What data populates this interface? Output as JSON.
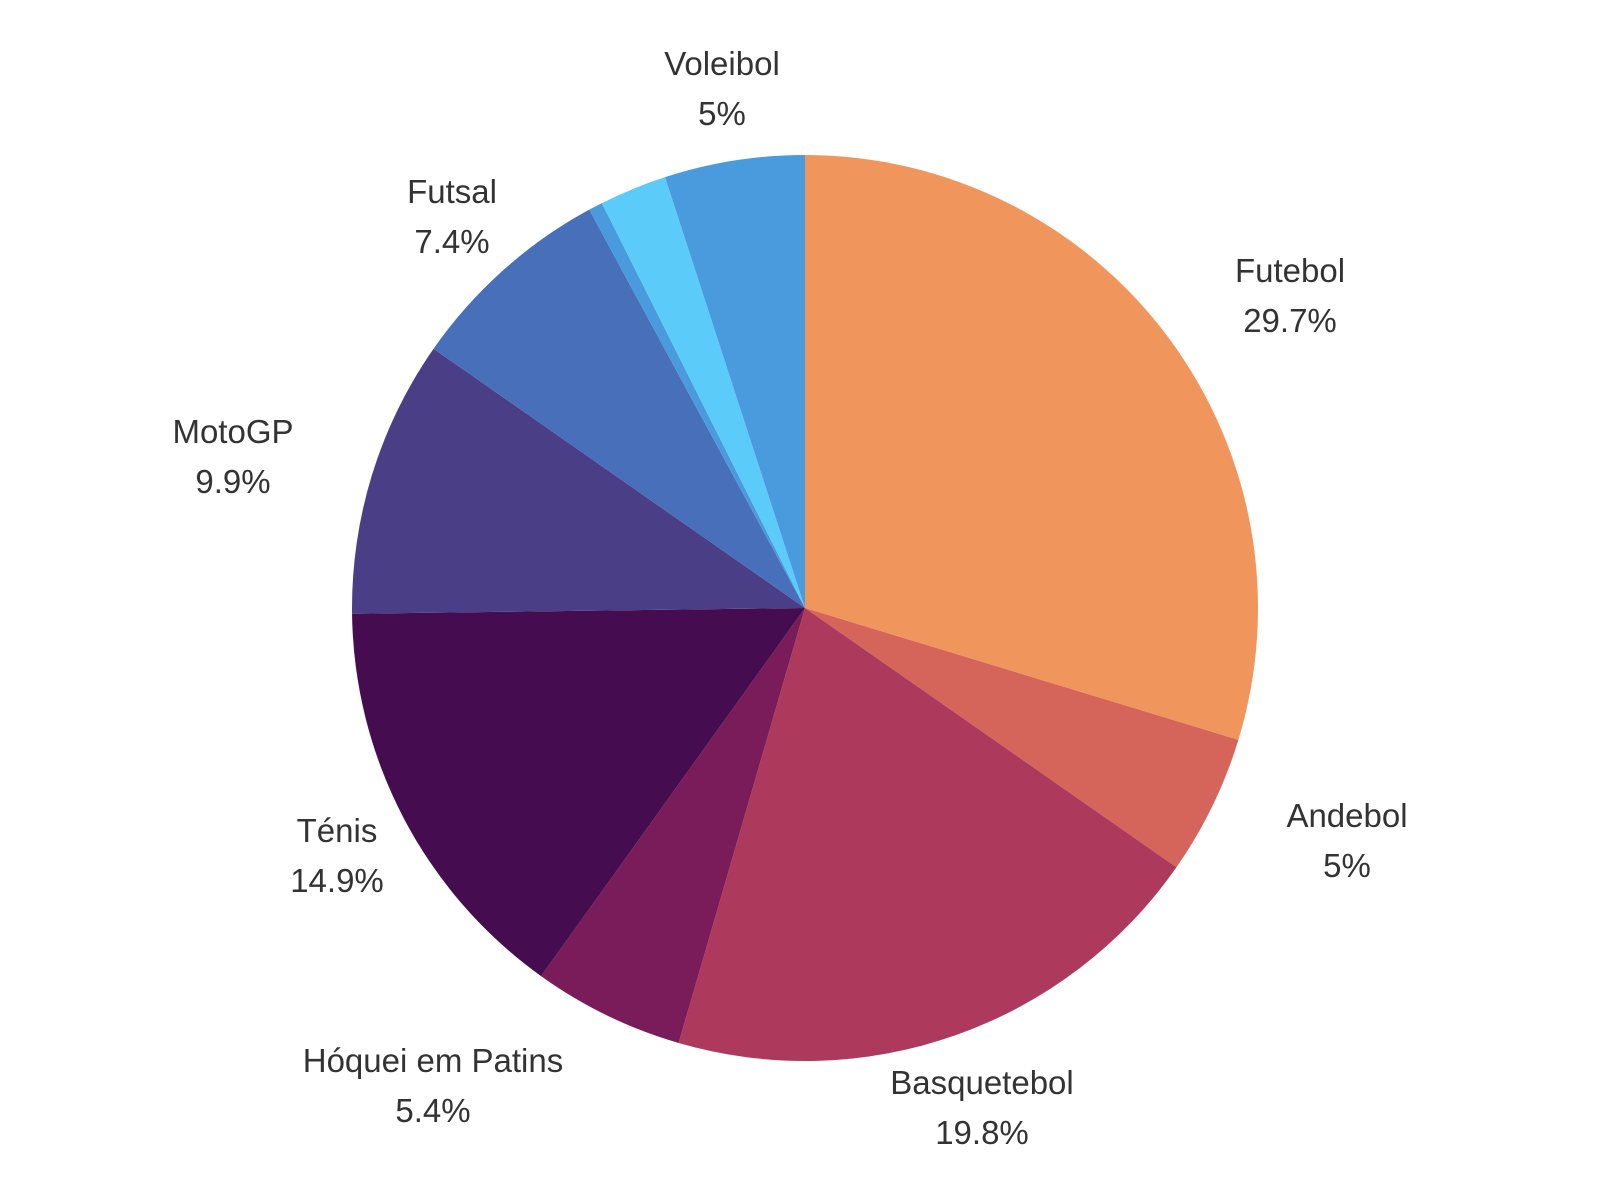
{
  "chart_data": {
    "type": "pie",
    "slices": [
      {
        "label": "Futebol",
        "value": 29.7,
        "display": "29.7%",
        "color": "#F0965C"
      },
      {
        "label": "Andebol",
        "value": 5.0,
        "display": "5%",
        "color": "#D5655A"
      },
      {
        "label": "Basquetebol",
        "value": 19.8,
        "display": "19.8%",
        "color": "#AD3A5D"
      },
      {
        "label": "Hóquei em Patins",
        "value": 5.4,
        "display": "5.4%",
        "color": "#7A1C59"
      },
      {
        "label": "Ténis",
        "value": 14.9,
        "display": "14.9%",
        "color": "#450D4F"
      },
      {
        "label": "MotoGP",
        "value": 9.9,
        "display": "9.9%",
        "color": "#4A3F87"
      },
      {
        "label": "Futsal",
        "value": 7.4,
        "display": "7.4%",
        "color": "#486FBA"
      },
      {
        "label": "",
        "value": 0.5,
        "display": "",
        "color": "#4A9BDD"
      },
      {
        "label": "",
        "value": 2.4,
        "display": "",
        "color": "#5BCCFA"
      },
      {
        "label": "Voleibol",
        "value": 5.0,
        "display": "5%",
        "color": "#4A9BDD"
      }
    ],
    "start_angle": "12 o'clock",
    "direction": "clockwise",
    "legend": "none",
    "title": ""
  }
}
